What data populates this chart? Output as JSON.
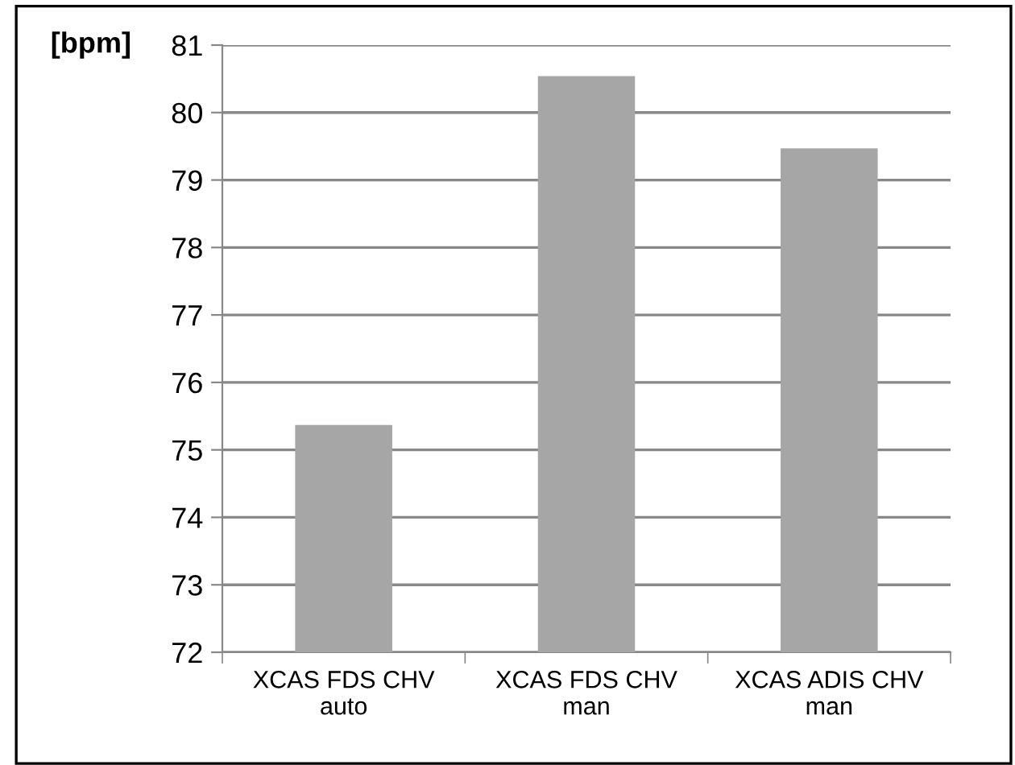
{
  "chart_data": {
    "type": "bar",
    "ylabel": "[bpm]",
    "categories": [
      "XCAS FDS CHV\nauto",
      "XCAS FDS CHV\nman",
      "XCAS ADIS CHV\nman"
    ],
    "values": [
      75.37,
      80.54,
      79.47
    ],
    "color": "#a6a6a6",
    "ylim": [
      72,
      81
    ],
    "yticks": [
      72,
      73,
      74,
      75,
      76,
      77,
      78,
      79,
      80,
      81
    ],
    "grid": "y",
    "legend": false
  }
}
